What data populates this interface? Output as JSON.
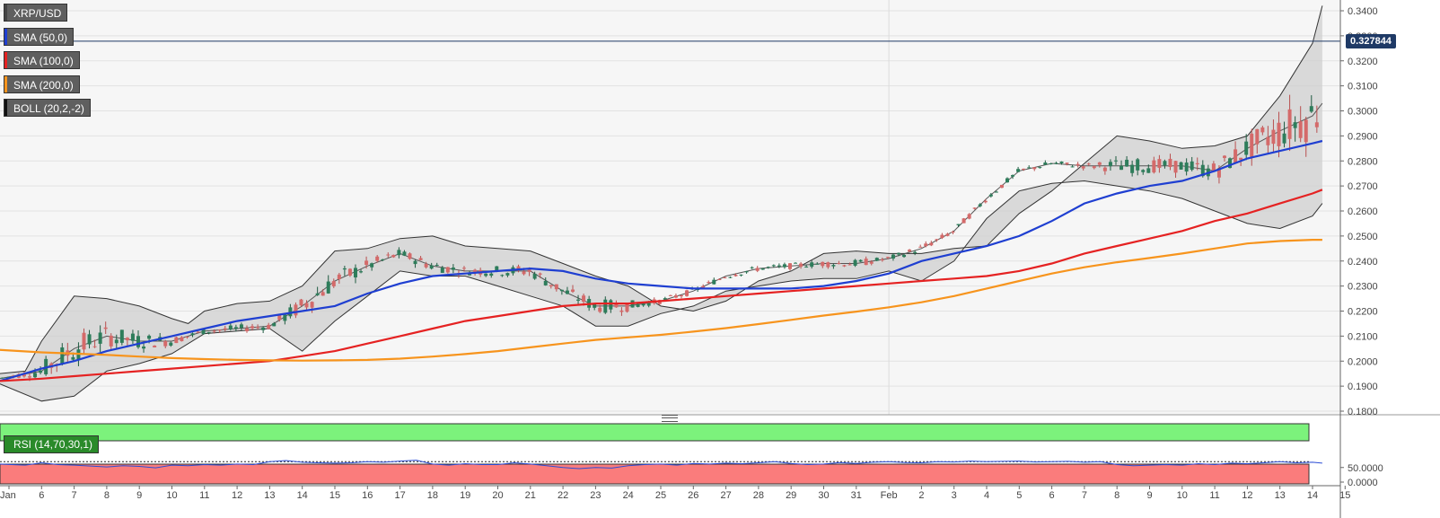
{
  "legend": {
    "symbol": "XRP/USD",
    "items": [
      {
        "label": "SMA (50,0)",
        "color": "#1f3fd1"
      },
      {
        "label": "SMA (100,0)",
        "color": "#e52222"
      },
      {
        "label": "SMA (200,0)",
        "color": "#f7941d"
      },
      {
        "label": "BOLL (20,2,-2)",
        "color": "#111111"
      }
    ]
  },
  "rsi_label": "RSI (14,70,30,1)",
  "last_price_label": "0.327844",
  "chart_data": [
    {
      "type": "line",
      "title": "XRP/USD",
      "subtype": "candlestick",
      "y_ticks": [
        "0.1800",
        "0.1900",
        "0.2000",
        "0.2100",
        "0.2200",
        "0.2300",
        "0.2400",
        "0.2500",
        "0.2600",
        "0.2700",
        "0.2800",
        "0.2900",
        "0.3000",
        "0.3100",
        "0.3200",
        "0.3300",
        "0.3400"
      ],
      "ylim": [
        0.18,
        0.342
      ],
      "x_ticks": [
        "Jan",
        "6",
        "7",
        "8",
        "9",
        "10",
        "11",
        "12",
        "13",
        "14",
        "15",
        "16",
        "17",
        "18",
        "19",
        "20",
        "21",
        "22",
        "23",
        "24",
        "25",
        "26",
        "27",
        "28",
        "29",
        "30",
        "31",
        "Feb",
        "2",
        "3",
        "4",
        "5",
        "6",
        "7",
        "8",
        "9",
        "10",
        "11",
        "12",
        "13",
        "14",
        "15"
      ],
      "last_price": 0.327844,
      "grid": true,
      "series": [
        {
          "name": "SMA (50,0)",
          "color": "#1f3fd1",
          "x": [
            -0.3,
            1,
            2,
            3,
            4,
            5,
            6,
            7,
            8,
            9,
            10,
            11,
            12,
            13,
            14,
            15,
            16,
            17,
            18,
            19,
            20,
            21,
            22,
            23,
            24,
            25,
            26,
            27,
            28,
            29,
            30,
            31,
            32,
            33,
            34,
            35,
            36,
            37,
            38,
            39,
            40,
            40.3
          ],
          "values": [
            0.192,
            0.197,
            0.2,
            0.204,
            0.207,
            0.21,
            0.213,
            0.216,
            0.218,
            0.22,
            0.222,
            0.227,
            0.231,
            0.234,
            0.235,
            0.236,
            0.237,
            0.236,
            0.233,
            0.231,
            0.23,
            0.229,
            0.229,
            0.229,
            0.229,
            0.23,
            0.232,
            0.235,
            0.24,
            0.243,
            0.246,
            0.25,
            0.256,
            0.263,
            0.267,
            0.27,
            0.272,
            0.276,
            0.281,
            0.284,
            0.287,
            0.288
          ]
        },
        {
          "name": "SMA (100,0)",
          "color": "#e52222",
          "x": [
            -0.3,
            1,
            2,
            3,
            4,
            5,
            6,
            7,
            8,
            9,
            10,
            11,
            12,
            13,
            14,
            15,
            16,
            17,
            18,
            19,
            20,
            21,
            22,
            23,
            24,
            25,
            26,
            27,
            28,
            29,
            30,
            31,
            32,
            33,
            34,
            35,
            36,
            37,
            38,
            39,
            40,
            40.3
          ],
          "values": [
            0.192,
            0.193,
            0.194,
            0.195,
            0.196,
            0.197,
            0.198,
            0.199,
            0.2,
            0.202,
            0.204,
            0.207,
            0.21,
            0.213,
            0.216,
            0.218,
            0.22,
            0.222,
            0.223,
            0.223,
            0.224,
            0.225,
            0.226,
            0.227,
            0.228,
            0.229,
            0.23,
            0.231,
            0.232,
            0.233,
            0.234,
            0.236,
            0.239,
            0.243,
            0.246,
            0.249,
            0.252,
            0.256,
            0.259,
            0.263,
            0.267,
            0.2685
          ]
        },
        {
          "name": "SMA (200,0)",
          "color": "#f7941d",
          "x": [
            -0.3,
            1,
            2,
            3,
            4,
            5,
            6,
            7,
            8,
            9,
            10,
            11,
            12,
            13,
            14,
            15,
            16,
            17,
            18,
            19,
            20,
            21,
            22,
            23,
            24,
            25,
            26,
            27,
            28,
            29,
            30,
            31,
            32,
            33,
            34,
            35,
            36,
            37,
            38,
            39,
            40,
            40.3
          ],
          "values": [
            0.2045,
            0.2035,
            0.203,
            0.2025,
            0.2018,
            0.2012,
            0.2008,
            0.2005,
            0.2003,
            0.2002,
            0.2003,
            0.2005,
            0.201,
            0.2018,
            0.2028,
            0.204,
            0.2055,
            0.207,
            0.2085,
            0.2095,
            0.2105,
            0.2118,
            0.2132,
            0.2148,
            0.2165,
            0.2182,
            0.2198,
            0.2215,
            0.2235,
            0.226,
            0.229,
            0.232,
            0.235,
            0.2375,
            0.2395,
            0.2412,
            0.243,
            0.245,
            0.247,
            0.248,
            0.2485,
            0.2485
          ]
        },
        {
          "name": "BOLL upper",
          "color": "#333333",
          "x": [
            -0.3,
            0.5,
            1,
            2,
            3,
            4,
            5,
            5.5,
            6,
            7,
            8,
            9,
            10,
            11,
            12,
            13,
            14,
            15,
            16,
            17,
            18,
            19,
            20,
            21,
            22,
            23,
            24,
            25,
            26,
            27,
            28,
            29,
            30,
            31,
            32,
            33,
            34,
            35,
            36,
            37,
            38,
            39,
            40,
            40.3
          ],
          "values": [
            0.195,
            0.196,
            0.208,
            0.226,
            0.225,
            0.222,
            0.217,
            0.215,
            0.22,
            0.223,
            0.224,
            0.23,
            0.244,
            0.245,
            0.249,
            0.25,
            0.246,
            0.245,
            0.244,
            0.239,
            0.234,
            0.23,
            0.222,
            0.22,
            0.224,
            0.232,
            0.236,
            0.243,
            0.244,
            0.243,
            0.243,
            0.245,
            0.246,
            0.259,
            0.268,
            0.279,
            0.29,
            0.288,
            0.285,
            0.286,
            0.29,
            0.306,
            0.327,
            0.342
          ]
        },
        {
          "name": "BOLL middle",
          "color": "#555555",
          "x": [
            -0.3,
            1,
            2,
            3,
            4,
            5,
            6,
            7,
            8,
            9,
            10,
            11,
            12,
            13,
            14,
            15,
            16,
            17,
            18,
            19,
            20,
            21,
            22,
            23,
            24,
            25,
            26,
            27,
            28,
            29,
            30,
            31,
            32,
            33,
            34,
            35,
            36,
            37,
            38,
            39,
            40,
            40.3
          ],
          "values": [
            0.193,
            0.196,
            0.205,
            0.21,
            0.208,
            0.208,
            0.212,
            0.213,
            0.214,
            0.222,
            0.232,
            0.238,
            0.243,
            0.238,
            0.236,
            0.236,
            0.236,
            0.228,
            0.222,
            0.222,
            0.224,
            0.228,
            0.234,
            0.237,
            0.238,
            0.239,
            0.239,
            0.241,
            0.245,
            0.252,
            0.265,
            0.276,
            0.279,
            0.278,
            0.278,
            0.278,
            0.278,
            0.276,
            0.285,
            0.292,
            0.298,
            0.303
          ]
        },
        {
          "name": "BOLL lower",
          "color": "#333333",
          "x": [
            -0.3,
            1,
            2,
            3,
            4,
            5,
            6,
            7,
            8,
            9,
            10,
            11,
            12,
            13,
            14,
            15,
            16,
            17,
            18,
            19,
            20,
            21,
            22,
            23,
            24,
            25,
            26,
            27,
            28,
            29,
            30,
            31,
            32,
            33,
            34,
            35,
            36,
            37,
            38,
            39,
            40,
            40.3
          ],
          "values": [
            0.191,
            0.184,
            0.186,
            0.196,
            0.199,
            0.203,
            0.211,
            0.212,
            0.213,
            0.204,
            0.216,
            0.226,
            0.236,
            0.234,
            0.234,
            0.23,
            0.226,
            0.222,
            0.214,
            0.214,
            0.219,
            0.222,
            0.228,
            0.23,
            0.232,
            0.233,
            0.233,
            0.236,
            0.232,
            0.24,
            0.257,
            0.268,
            0.271,
            0.272,
            0.27,
            0.268,
            0.265,
            0.26,
            0.255,
            0.253,
            0.258,
            0.263
          ]
        }
      ]
    },
    {
      "type": "line",
      "title": "RSI (14,70,30,1)",
      "y_ticks": [
        "0.0000",
        "50.0000"
      ],
      "ylim": [
        0,
        100
      ],
      "overbought_level": 70,
      "oversold_level": 30,
      "series": [
        {
          "name": "RSI (14,70,30,1)",
          "color": "#2b4dd6",
          "x": [
            -0.3,
            0.5,
            1,
            1.5,
            2,
            2.5,
            3,
            3.5,
            4,
            4.5,
            5,
            5.5,
            6,
            6.5,
            7,
            7.5,
            8,
            8.5,
            9,
            9.5,
            10,
            10.5,
            11,
            11.5,
            12,
            12.5,
            13,
            13.5,
            14,
            14.5,
            15,
            15.5,
            16,
            16.5,
            17,
            17.5,
            18,
            18.5,
            19,
            19.5,
            20,
            20.5,
            21,
            21.5,
            22,
            22.5,
            23,
            23.5,
            24,
            24.5,
            25,
            25.5,
            26,
            26.5,
            27,
            27.5,
            28,
            28.5,
            29,
            29.5,
            30,
            30.5,
            31,
            31.5,
            32,
            32.5,
            33,
            33.5,
            34,
            34.5,
            35,
            35.5,
            36,
            36.5,
            37,
            37.5,
            38,
            38.5,
            39,
            39.5,
            40,
            40.3
          ],
          "values": [
            62,
            58,
            66,
            60,
            58,
            55,
            52,
            56,
            54,
            49,
            58,
            56,
            60,
            58,
            62,
            60,
            70,
            74,
            68,
            66,
            65,
            66,
            70,
            68,
            72,
            75,
            62,
            58,
            63,
            60,
            60,
            66,
            62,
            56,
            50,
            46,
            50,
            48,
            56,
            60,
            62,
            58,
            64,
            62,
            65,
            63,
            66,
            70,
            64,
            60,
            62,
            67,
            64,
            68,
            70,
            67,
            66,
            70,
            69,
            72,
            70,
            71,
            72,
            69,
            70,
            71,
            68,
            70,
            60,
            56,
            58,
            60,
            58,
            63,
            60,
            65,
            63,
            66,
            70,
            66,
            68,
            65
          ]
        }
      ]
    }
  ]
}
